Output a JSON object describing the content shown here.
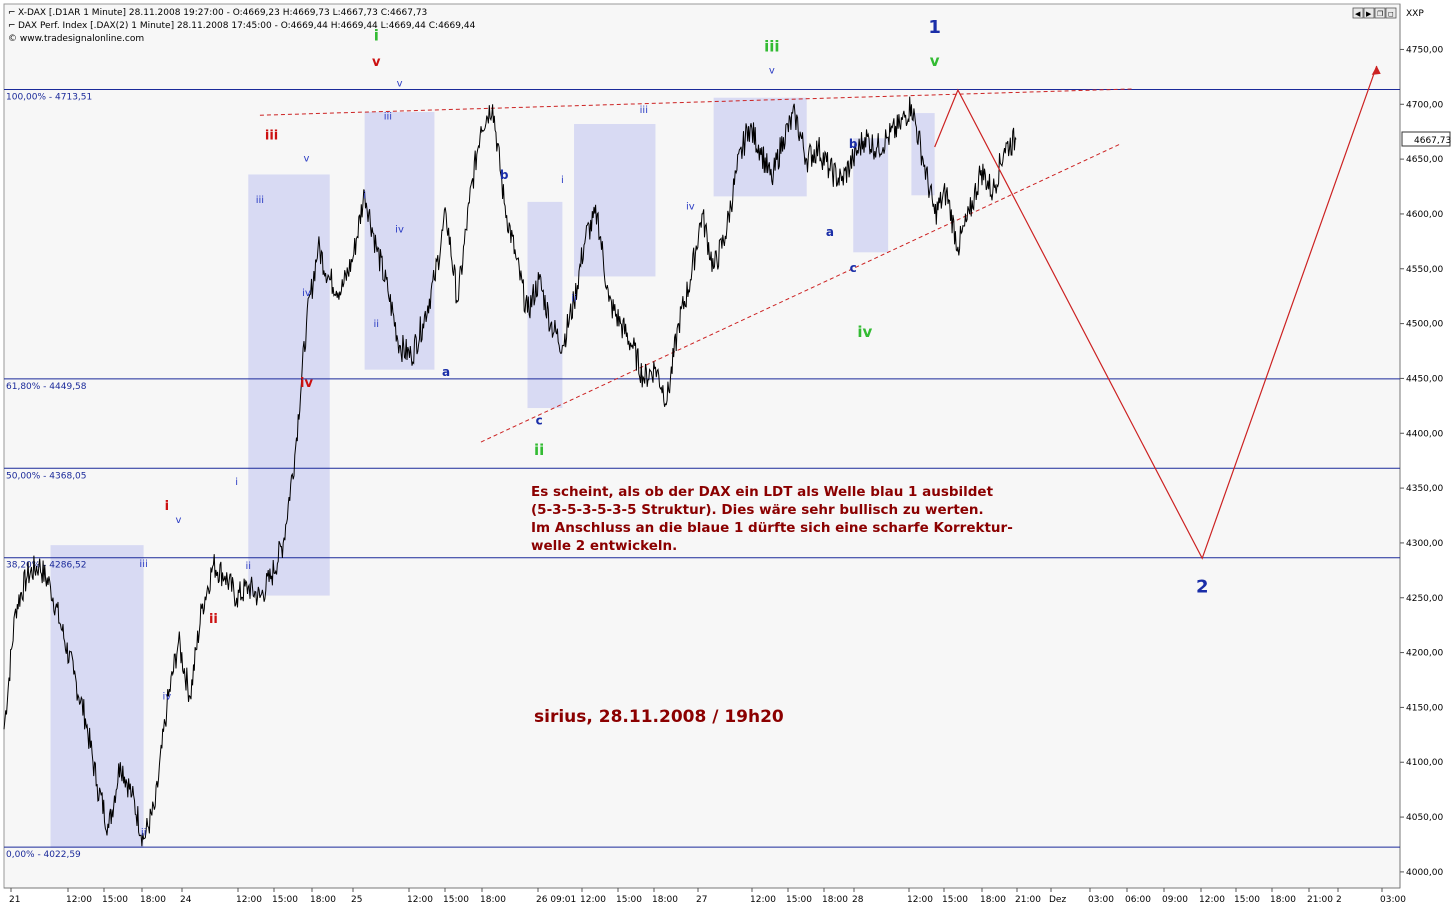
{
  "header": {
    "line1": "X-DAX [.D1AR  1 Minute] 28.11.2008 19:27:00 - O:4669,23 H:4669,73 L:4667,73 C:4667,73",
    "line2": "DAX Perf. Index [.DAX(2)  1 Minute] 28.11.2008 17:45:00 - O:4669,44 H:4669,44 L:4669,44 C:4669,44",
    "line3": "© www.tradesignalonline.com",
    "axis_label": "XXP",
    "last_price": "4667,73"
  },
  "colors": {
    "background": "#f7f7f7",
    "price": "#000000",
    "fib_line": "#1b2a9a",
    "box_fill": "#cdd0f2",
    "red_label": "#cc1111",
    "green_label": "#33bb33",
    "blue_label": "#1a2ea8",
    "dark_red_text": "#8b0000",
    "projection": "#cc2222"
  },
  "chart_data": {
    "type": "line",
    "title": "",
    "ylim": [
      3990,
      4780
    ],
    "yticks": [
      "4750,00",
      "4700,00",
      "4650,00",
      "4600,00",
      "4550,00",
      "4500,00",
      "4450,00",
      "4400,00",
      "4350,00",
      "4300,00",
      "4250,00",
      "4200,00",
      "4150,00",
      "4100,00",
      "4050,00",
      "4000,00"
    ],
    "xticks": [
      "21",
      "12:00",
      "15:00",
      "18:00",
      "24",
      "12:00",
      "15:00",
      "18:00",
      "25",
      "12:00",
      "15:00",
      "18:00",
      "26 09:01",
      "12:00",
      "15:00",
      "18:00",
      "27",
      "12:00",
      "15:00",
      "18:00",
      "28",
      "12:00",
      "15:00",
      "18:00",
      "21:00",
      "Dez",
      "03:00",
      "06:00",
      "09:00",
      "12:00",
      "15:00",
      "18:00",
      "21:00",
      "2",
      "03:00"
    ],
    "fib_levels": [
      {
        "label": "100,00% - 4713,51",
        "value": 4713.51
      },
      {
        "label": "61,80% - 4449,58",
        "value": 4449.58
      },
      {
        "label": "50,00% - 4368,05",
        "value": 4368.05
      },
      {
        "label": "38,20% - 4286,52",
        "value": 4286.52
      },
      {
        "label": "0,00% - 4022,59",
        "value": 4022.59
      }
    ],
    "series": [
      {
        "values": [
          [
            0,
            4130
          ],
          [
            1,
            4240
          ],
          [
            2,
            4270
          ],
          [
            3,
            4280
          ],
          [
            4,
            4260
          ],
          [
            5,
            4220
          ],
          [
            6,
            4180
          ],
          [
            7,
            4140
          ],
          [
            8,
            4080
          ],
          [
            9,
            4040
          ],
          [
            10,
            4100
          ],
          [
            11,
            4070
          ],
          [
            12,
            4030
          ],
          [
            13,
            4060
          ],
          [
            14,
            4150
          ],
          [
            15,
            4210
          ],
          [
            16,
            4160
          ],
          [
            17,
            4240
          ],
          [
            18,
            4280
          ],
          [
            19,
            4270
          ],
          [
            20,
            4250
          ],
          [
            21,
            4260
          ],
          [
            22,
            4250
          ],
          [
            23,
            4270
          ],
          [
            24,
            4300
          ],
          [
            25,
            4380
          ],
          [
            26,
            4500
          ],
          [
            27,
            4570
          ],
          [
            28,
            4540
          ],
          [
            29,
            4530
          ],
          [
            30,
            4560
          ],
          [
            31,
            4620
          ],
          [
            32,
            4570
          ],
          [
            33,
            4530
          ],
          [
            34,
            4480
          ],
          [
            35,
            4470
          ],
          [
            36,
            4500
          ],
          [
            37,
            4540
          ],
          [
            38,
            4600
          ],
          [
            39,
            4520
          ],
          [
            40,
            4610
          ],
          [
            41,
            4680
          ],
          [
            42,
            4700
          ],
          [
            43,
            4610
          ],
          [
            44,
            4560
          ],
          [
            45,
            4510
          ],
          [
            46,
            4540
          ],
          [
            47,
            4500
          ],
          [
            48,
            4480
          ],
          [
            49,
            4520
          ],
          [
            50,
            4580
          ],
          [
            51,
            4600
          ],
          [
            52,
            4520
          ],
          [
            53,
            4500
          ],
          [
            54,
            4480
          ],
          [
            55,
            4450
          ],
          [
            56,
            4460
          ],
          [
            57,
            4430
          ],
          [
            58,
            4500
          ],
          [
            59,
            4540
          ],
          [
            60,
            4600
          ],
          [
            61,
            4550
          ],
          [
            62,
            4580
          ],
          [
            63,
            4640
          ],
          [
            64,
            4680
          ],
          [
            65,
            4660
          ],
          [
            66,
            4630
          ],
          [
            67,
            4670
          ],
          [
            68,
            4690
          ],
          [
            69,
            4650
          ],
          [
            70,
            4660
          ],
          [
            71,
            4640
          ],
          [
            72,
            4630
          ],
          [
            73,
            4650
          ],
          [
            74,
            4670
          ],
          [
            75,
            4660
          ],
          [
            76,
            4670
          ],
          [
            77,
            4680
          ],
          [
            78,
            4700
          ],
          [
            79,
            4650
          ],
          [
            80,
            4600
          ],
          [
            81,
            4620
          ],
          [
            82,
            4570
          ],
          [
            83,
            4600
          ],
          [
            84,
            4640
          ],
          [
            85,
            4620
          ],
          [
            86,
            4660
          ],
          [
            87,
            4668
          ]
        ]
      }
    ],
    "boxes": [
      {
        "x": [
          4,
          12
        ],
        "y": [
          4022,
          4298
        ]
      },
      {
        "x": [
          21,
          28
        ],
        "y": [
          4252,
          4636
        ]
      },
      {
        "x": [
          31,
          37
        ],
        "y": [
          4458,
          4693
        ]
      },
      {
        "x": [
          45,
          48
        ],
        "y": [
          4423,
          4611
        ]
      },
      {
        "x": [
          49,
          56
        ],
        "y": [
          4543,
          4682
        ]
      },
      {
        "x": [
          61,
          69
        ],
        "y": [
          4616,
          4706
        ]
      },
      {
        "x": [
          73,
          76
        ],
        "y": [
          4565,
          4669
        ]
      },
      {
        "x": [
          78,
          80
        ],
        "y": [
          4617,
          4692
        ]
      }
    ],
    "trendlines": [
      {
        "from": [
          22,
          4690
        ],
        "to": [
          97,
          4714
        ]
      },
      {
        "from": [
          41,
          4392
        ],
        "to": [
          96,
          4664
        ]
      }
    ],
    "projection": [
      [
        80,
        4661
      ],
      [
        82,
        4713
      ],
      [
        103,
        4286
      ],
      [
        118,
        4735
      ]
    ],
    "wave_labels": [
      {
        "text": "i",
        "color": "green",
        "x": 32,
        "y": 4758,
        "size": 15
      },
      {
        "text": "v",
        "color": "red",
        "x": 32,
        "y": 4735,
        "size": 13
      },
      {
        "text": "iii",
        "color": "red",
        "x": 23,
        "y": 4668,
        "size": 13
      },
      {
        "text": "iv",
        "color": "red",
        "x": 26,
        "y": 4442,
        "size": 13
      },
      {
        "text": "i",
        "color": "red",
        "x": 14,
        "y": 4330,
        "size": 13
      },
      {
        "text": "ii",
        "color": "red",
        "x": 18,
        "y": 4227,
        "size": 13
      },
      {
        "text": "ii",
        "color": "green",
        "x": 46,
        "y": 4380,
        "size": 15
      },
      {
        "text": "iii",
        "color": "green",
        "x": 66,
        "y": 4748,
        "size": 15
      },
      {
        "text": "iv",
        "color": "green",
        "x": 74,
        "y": 4488,
        "size": 15
      },
      {
        "text": "v",
        "color": "green",
        "x": 80,
        "y": 4735,
        "size": 15
      },
      {
        "text": "1",
        "color": "blue",
        "x": 80,
        "y": 4765,
        "size": 18
      },
      {
        "text": "2",
        "color": "blue",
        "x": 103,
        "y": 4255,
        "size": 18
      },
      {
        "text": "a",
        "color": "blue",
        "x": 38,
        "y": 4452,
        "size": 12
      },
      {
        "text": "b",
        "color": "blue",
        "x": 43,
        "y": 4632,
        "size": 12
      },
      {
        "text": "c",
        "color": "blue",
        "x": 46,
        "y": 4408,
        "size": 12
      },
      {
        "text": "a",
        "color": "blue",
        "x": 71,
        "y": 4580,
        "size": 12
      },
      {
        "text": "b",
        "color": "blue",
        "x": 73,
        "y": 4660,
        "size": 12
      },
      {
        "text": "c",
        "color": "blue",
        "x": 73,
        "y": 4547,
        "size": 12
      },
      {
        "text": "v",
        "color": "small",
        "x": 15,
        "y": 4318
      },
      {
        "text": "iii",
        "color": "small",
        "x": 12,
        "y": 4278
      },
      {
        "text": "iv",
        "color": "small",
        "x": 14,
        "y": 4157
      },
      {
        "text": "ii",
        "color": "small",
        "x": 12,
        "y": 4033
      },
      {
        "text": "i",
        "color": "small",
        "x": 20,
        "y": 4353
      },
      {
        "text": "ii",
        "color": "small",
        "x": 21,
        "y": 4276
      },
      {
        "text": "iii",
        "color": "small",
        "x": 22,
        "y": 4610
      },
      {
        "text": "iv",
        "color": "small",
        "x": 26,
        "y": 4525
      },
      {
        "text": "v",
        "color": "small",
        "x": 26,
        "y": 4648
      },
      {
        "text": "i",
        "color": "small",
        "x": 31,
        "y": 4614
      },
      {
        "text": "ii",
        "color": "small",
        "x": 32,
        "y": 4497
      },
      {
        "text": "iii",
        "color": "small",
        "x": 33,
        "y": 4686
      },
      {
        "text": "iv",
        "color": "small",
        "x": 34,
        "y": 4583
      },
      {
        "text": "v",
        "color": "small",
        "x": 34,
        "y": 4716
      },
      {
        "text": "i",
        "color": "small",
        "x": 48,
        "y": 4628
      },
      {
        "text": "ii",
        "color": "small",
        "x": 49,
        "y": 4520
      },
      {
        "text": "iii",
        "color": "small",
        "x": 55,
        "y": 4692
      },
      {
        "text": "iv",
        "color": "small",
        "x": 59,
        "y": 4604
      },
      {
        "text": "v",
        "color": "small",
        "x": 66,
        "y": 4728
      }
    ]
  },
  "annotation": {
    "line1": "Es scheint, als ob der DAX ein LDT als Welle blau 1 ausbildet",
    "line2": "(5-3-5-3-5-3-5 Struktur). Dies wäre sehr bullisch zu werten.",
    "line3": "Im Anschluss an die blaue 1 dürfte sich eine scharfe Korrektur-",
    "line4": "welle 2 entwickeln.",
    "signature": "sirius, 28.11.2008  /  19h20"
  }
}
